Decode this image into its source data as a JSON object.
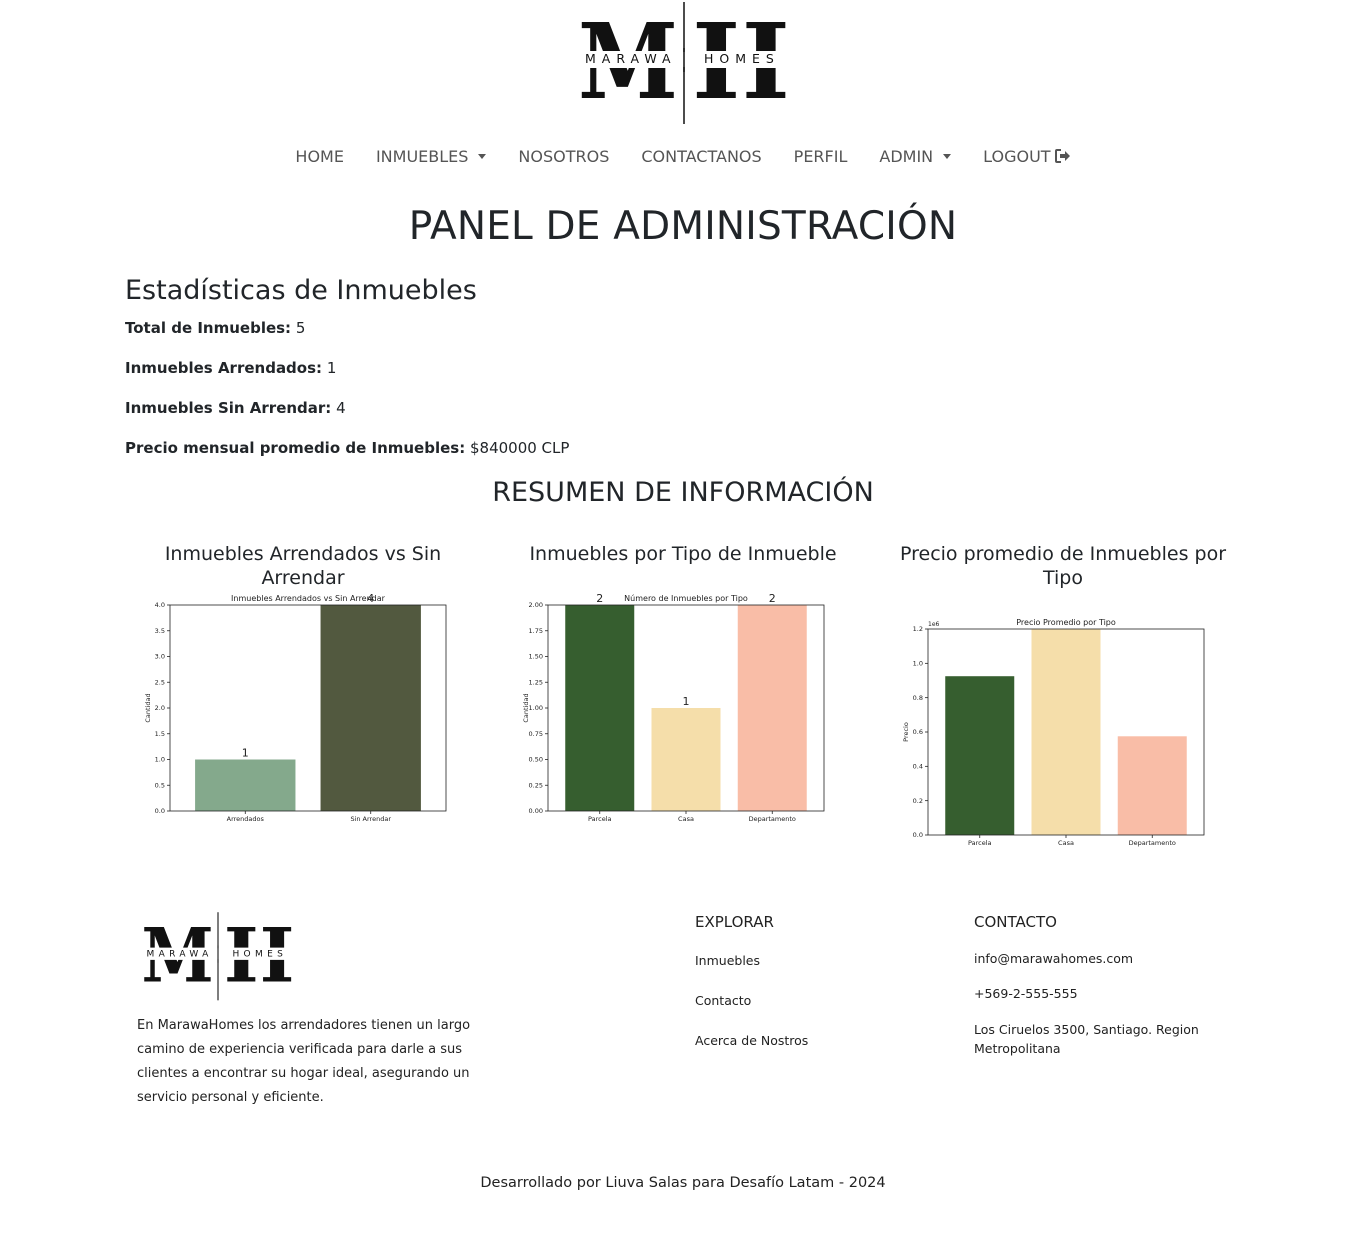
{
  "brand": {
    "monogram_m": "M",
    "monogram_h": "H",
    "wordmark_left": "MARAWA",
    "wordmark_right": "HOMES"
  },
  "nav": {
    "items": [
      {
        "label": "HOME"
      },
      {
        "label": "INMUEBLES",
        "dropdown": true
      },
      {
        "label": "NOSOTROS"
      },
      {
        "label": "CONTACTANOS"
      },
      {
        "label": "PERFIL"
      },
      {
        "label": "ADMIN",
        "dropdown": true
      },
      {
        "label": "LOGOUT",
        "icon": "sign-out-icon"
      }
    ]
  },
  "main": {
    "title": "PANEL DE ADMINISTRACIÓN",
    "stats_title": "Estadísticas de Inmuebles",
    "stats": [
      {
        "label": "Total de Inmuebles:",
        "value": "5"
      },
      {
        "label": "Inmuebles Arrendados:",
        "value": "1"
      },
      {
        "label": "Inmuebles Sin Arrendar:",
        "value": "4"
      },
      {
        "label": "Precio mensual promedio de Inmuebles:",
        "value": "$840000 CLP"
      }
    ],
    "summary_title": "RESUMEN DE INFORMACIÓN",
    "chart_headings": [
      "Inmuebles Arrendados vs Sin Arrendar",
      "Inmuebles por Tipo de Inmueble",
      "Precio promedio de Inmuebles por Tipo"
    ]
  },
  "chart_data": [
    {
      "type": "bar",
      "title": "Inmuebles Arrendados vs Sin Arrendar",
      "xlabel": "",
      "ylabel": "Cantidad",
      "categories": [
        "Arrendados",
        "Sin Arrendar"
      ],
      "values": [
        1,
        4
      ],
      "data_labels": [
        "1",
        "4"
      ],
      "colors": [
        "#84a98c",
        "#52593f"
      ],
      "ylim": [
        0,
        4.0
      ],
      "yticks": [
        0.0,
        0.5,
        1.0,
        1.5,
        2.0,
        2.5,
        3.0,
        3.5,
        4.0
      ],
      "ytick_labels": [
        "0.0",
        "0.5",
        "1.0",
        "1.5",
        "2.0",
        "2.5",
        "3.0",
        "3.5",
        "4.0"
      ],
      "grid": false
    },
    {
      "type": "bar",
      "title": "Número de Inmuebles por Tipo",
      "xlabel": "",
      "ylabel": "Cantidad",
      "categories": [
        "Parcela",
        "Casa",
        "Departamento"
      ],
      "values": [
        2,
        1,
        2
      ],
      "data_labels": [
        "2",
        "1",
        "2"
      ],
      "colors": [
        "#365e2f",
        "#f5deaa",
        "#f9bda7"
      ],
      "ylim": [
        0,
        2.0
      ],
      "yticks": [
        0.0,
        0.25,
        0.5,
        0.75,
        1.0,
        1.25,
        1.5,
        1.75,
        2.0
      ],
      "ytick_labels": [
        "0.00",
        "0.25",
        "0.50",
        "0.75",
        "1.00",
        "1.25",
        "1.50",
        "1.75",
        "2.00"
      ],
      "grid": false
    },
    {
      "type": "bar",
      "title": "Precio Promedio por Tipo",
      "xlabel": "",
      "ylabel": "Precio",
      "scale_label": "1e6",
      "categories": [
        "Parcela",
        "Casa",
        "Departamento"
      ],
      "values": [
        925000,
        1200000,
        575000
      ],
      "colors": [
        "#365e2f",
        "#f5deaa",
        "#f9bda7"
      ],
      "ylim": [
        0,
        1200000
      ],
      "yticks": [
        0,
        200000,
        400000,
        600000,
        800000,
        1000000,
        1200000
      ],
      "ytick_labels": [
        "0.0",
        "0.2",
        "0.4",
        "0.6",
        "0.8",
        "1.0",
        "1.2"
      ],
      "grid": false
    }
  ],
  "footer": {
    "description": "En MarawaHomes los arrendadores tienen un largo camino de experiencia verificada para darle a sus clientes a encontrar su hogar ideal, asegurando un servicio personal y eficiente.",
    "explore_title": "EXPLORAR",
    "explore_links": [
      "Inmuebles",
      "Contacto",
      "Acerca de Nostros"
    ],
    "contact_title": "CONTACTO",
    "email": "info@marawahomes.com",
    "phone": "+569-2-555-555",
    "address": "Los Ciruelos 3500, Santiago. Region Metropolitana",
    "credits": "Desarrollado por Liuva Salas para Desafío Latam - 2024"
  }
}
